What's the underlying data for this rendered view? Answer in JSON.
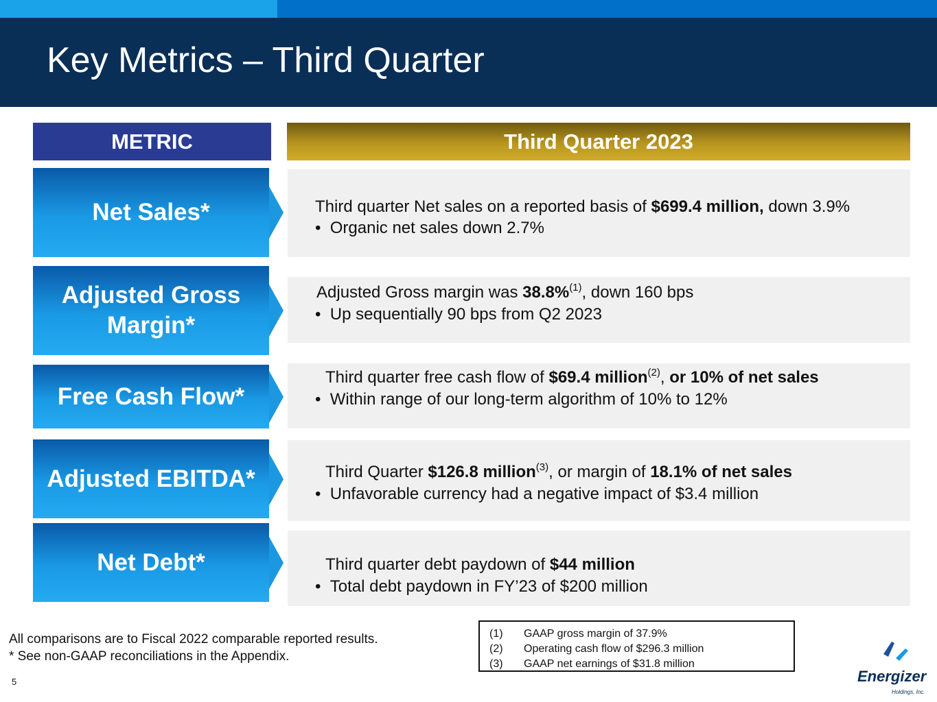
{
  "slide": {
    "title": "Key Metrics – Third Quarter",
    "page_number": "5"
  },
  "table": {
    "header_metric": "METRIC",
    "header_period": "Third Quarter 2023",
    "rows": [
      {
        "metric": "Net Sales*",
        "line1": {
          "pre": "Third quarter Net sales on a reported basis of ",
          "bold": "$699.4 million,",
          "post": " down 3.9%"
        },
        "bullet": "Organic net sales down 2.7%"
      },
      {
        "metric_line1": "Adjusted Gross",
        "metric_line2": "Margin*",
        "line1": {
          "pre": "Adjusted Gross margin was ",
          "bold": "38.8%",
          "sup": "(1)",
          "post": ", down 160 bps"
        },
        "bullet": "Up sequentially 90 bps from Q2 2023"
      },
      {
        "metric": "Free Cash Flow*",
        "line1": {
          "pre": "Third quarter free cash flow of ",
          "bold": "$69.4 million",
          "sup": "(2)",
          "mid": ", ",
          "bold2": "or 10% of net sales"
        },
        "bullet": "Within range of our long-term algorithm of 10% to 12%"
      },
      {
        "metric": "Adjusted EBITDA*",
        "line1": {
          "pre": "Third Quarter ",
          "bold": "$126.8 million",
          "sup": "(3)",
          "mid": ", or margin of ",
          "bold2": "18.1% of net sales"
        },
        "bullet": "Unfavorable currency had a negative impact of $3.4 million"
      },
      {
        "metric": "Net Debt*",
        "line1": {
          "pre": "Third quarter debt paydown of ",
          "bold": "$44 million"
        },
        "bullet": "Total debt paydown in FY’23 of $200 million"
      }
    ]
  },
  "notes": {
    "line1": "All comparisons are to Fiscal 2022 comparable reported results.",
    "line2": "* See non-GAAP reconciliations in the Appendix."
  },
  "footnotes": [
    {
      "num": "(1)",
      "text": "GAAP gross margin of 37.9%"
    },
    {
      "num": "(2)",
      "text": "Operating cash flow of $296.3 million"
    },
    {
      "num": "(3)",
      "text": "GAAP net earnings of $31.8 million"
    }
  ],
  "logo": {
    "name": "Energizer",
    "sub": "Holdings, Inc."
  },
  "colors": {
    "header_bg": "#0a2f57",
    "metric_header": "#2a3b94",
    "period_header": "#b8951f",
    "metric_box": "#1a9ae5",
    "content_box": "#f0f0f0"
  }
}
